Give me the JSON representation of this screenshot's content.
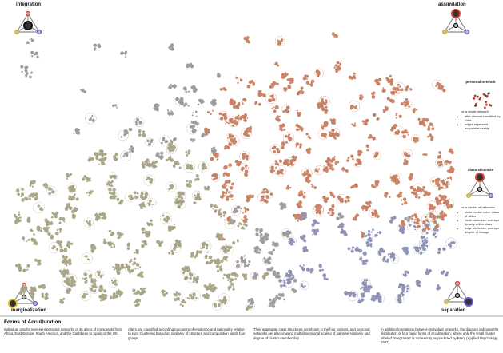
{
  "corners": {
    "top_left": "integration",
    "top_right": "assimilation",
    "bottom_left": "marginalization",
    "bottom_right": "separation"
  },
  "legend": {
    "personal_network": {
      "title": "personal network",
      "intro": "for a single network:",
      "items": [
        "alter classes identified by color",
        "edges represent acquaintanceship"
      ]
    },
    "class_structure": {
      "title": "class structure",
      "intro": "for a cluster of networks:",
      "items": [
        "circle border color: class of alters",
        "circle darkness: average density within class",
        "edge thickness: average degree of linkage"
      ]
    }
  },
  "footer": {
    "title": "Forms of Acculturation",
    "columns": [
      "Individual graphs represent personal networks of 45 alters of immigrants from Africa, East-Europe, South America, and the Caribbean to Spain or the US.",
      "Alters are classified according to country of residence and nationality relative to ego. Clustering based on similarity of structure and composition yields four groups.",
      "Their aggregate class structures are shown in the four corners, and personal networks are placed using multidimensional scaling of pairwise similarity and degree of cluster membership.",
      "In addition to relations between individual networks, the diagram indicates the distribution of four basic forms of acculturation, where only the small cluster labeled \"integration\" is not exactly as predicted by Berry (Applied Psychology, 1997)."
    ]
  }
}
